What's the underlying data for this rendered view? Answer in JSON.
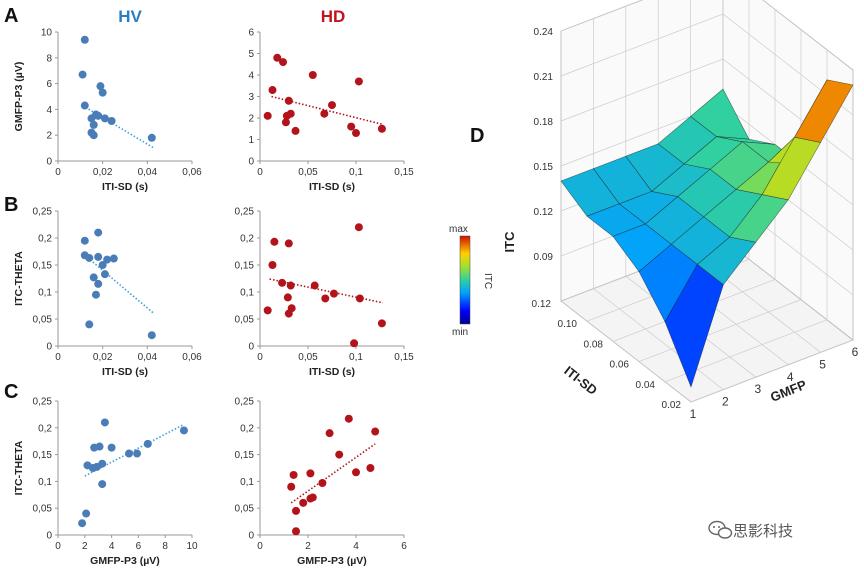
{
  "headers": {
    "left": "HV",
    "right": "HD",
    "left_color": "#2b7fc1",
    "right_color": "#c0141b"
  },
  "panel_letters": {
    "a": "A",
    "b": "B",
    "c": "C",
    "d": "D"
  },
  "colors": {
    "hv_point": "#4a7db8",
    "hv_trend": "#3aa0d8",
    "hd_point": "#b3141b",
    "hd_trend": "#b3141b"
  },
  "watermark": "思影科技",
  "chart_data": [
    {
      "id": "A-HV",
      "type": "scatter",
      "xlabel": "ITI-SD (s)",
      "ylabel": "GMFP-P3 (µV)",
      "xlim": [
        0,
        0.06
      ],
      "ylim": [
        0,
        10
      ],
      "xticks": [
        "0",
        "0,02",
        "0,04",
        "0,06"
      ],
      "yticks": [
        "0",
        "2",
        "4",
        "6",
        "8",
        "10"
      ],
      "x": [
        0.012,
        0.011,
        0.012,
        0.019,
        0.02,
        0.015,
        0.017,
        0.016,
        0.018,
        0.021,
        0.024,
        0.015,
        0.016,
        0.042
      ],
      "y": [
        9.4,
        6.7,
        4.3,
        5.8,
        5.3,
        3.3,
        3.6,
        2.8,
        3.5,
        3.3,
        3.1,
        2.2,
        2.0,
        1.8
      ],
      "trend": [
        [
          0.011,
          4.3
        ],
        [
          0.043,
          1.0
        ]
      ]
    },
    {
      "id": "A-HD",
      "type": "scatter",
      "xlabel": "ITI-SD (s)",
      "ylabel": "",
      "xlim": [
        0,
        0.15
      ],
      "ylim": [
        0,
        6
      ],
      "xticks": [
        "0",
        "0,05",
        "0,1",
        "0,15"
      ],
      "yticks": [
        "0",
        "1",
        "2",
        "3",
        "4",
        "5",
        "6"
      ],
      "x": [
        0.018,
        0.024,
        0.008,
        0.013,
        0.055,
        0.103,
        0.03,
        0.075,
        0.032,
        0.028,
        0.037,
        0.067,
        0.095,
        0.027,
        0.1,
        0.127
      ],
      "y": [
        4.8,
        4.6,
        2.1,
        3.3,
        4.0,
        3.7,
        2.8,
        2.6,
        2.2,
        2.1,
        1.4,
        2.2,
        1.6,
        1.8,
        1.3,
        1.5
      ],
      "trend": [
        [
          0.012,
          3.0
        ],
        [
          0.128,
          1.7
        ]
      ]
    },
    {
      "id": "B-HV",
      "type": "scatter",
      "xlabel": "ITI-SD (s)",
      "ylabel": "ITC-THETA",
      "xlim": [
        0,
        0.06
      ],
      "ylim": [
        0,
        0.25
      ],
      "xticks": [
        "0",
        "0,02",
        "0,04",
        "0,06"
      ],
      "yticks": [
        "0",
        "0,05",
        "0,1",
        "0,15",
        "0,2",
        "0,25"
      ],
      "x": [
        0.018,
        0.012,
        0.012,
        0.014,
        0.018,
        0.02,
        0.022,
        0.025,
        0.021,
        0.016,
        0.018,
        0.017,
        0.014,
        0.042
      ],
      "y": [
        0.21,
        0.195,
        0.168,
        0.163,
        0.165,
        0.15,
        0.16,
        0.162,
        0.133,
        0.127,
        0.115,
        0.095,
        0.04,
        0.02
      ],
      "trend": [
        [
          0.012,
          0.168
        ],
        [
          0.043,
          0.06
        ]
      ]
    },
    {
      "id": "B-HD",
      "type": "scatter",
      "xlabel": "ITI-SD (s)",
      "ylabel": "",
      "xlim": [
        0,
        0.15
      ],
      "ylim": [
        0,
        0.25
      ],
      "xticks": [
        "0",
        "0,05",
        "0,1",
        "0,15"
      ],
      "yticks": [
        "0",
        "0,05",
        "0,1",
        "0,15",
        "0,2",
        "0,25"
      ],
      "x": [
        0.015,
        0.03,
        0.103,
        0.013,
        0.023,
        0.032,
        0.057,
        0.077,
        0.029,
        0.068,
        0.033,
        0.104,
        0.008,
        0.03,
        0.127,
        0.098
      ],
      "y": [
        0.193,
        0.19,
        0.22,
        0.15,
        0.117,
        0.112,
        0.112,
        0.097,
        0.09,
        0.088,
        0.07,
        0.088,
        0.066,
        0.06,
        0.042,
        0.005
      ],
      "trend": [
        [
          0.01,
          0.124
        ],
        [
          0.128,
          0.08
        ]
      ]
    },
    {
      "id": "C-HV",
      "type": "scatter",
      "xlabel": "GMFP-P3 (µV)",
      "ylabel": "ITC-THETA",
      "xlim": [
        0,
        10
      ],
      "ylim": [
        0,
        0.25
      ],
      "xticks": [
        "0",
        "2",
        "4",
        "6",
        "8",
        "10"
      ],
      "yticks": [
        "0",
        "0,05",
        "0,1",
        "0,15",
        "0,2",
        "0,25"
      ],
      "x": [
        3.5,
        9.4,
        2.7,
        3.1,
        4.0,
        6.7,
        5.3,
        5.9,
        2.2,
        2.6,
        3.3,
        2.9,
        3.3,
        2.1,
        1.8
      ],
      "y": [
        0.21,
        0.195,
        0.163,
        0.165,
        0.163,
        0.17,
        0.152,
        0.152,
        0.13,
        0.125,
        0.133,
        0.127,
        0.095,
        0.04,
        0.022
      ],
      "trend": [
        [
          2.0,
          0.11
        ],
        [
          9.3,
          0.205
        ]
      ]
    },
    {
      "id": "C-HD",
      "type": "scatter",
      "xlabel": "GMFP-P3 (µV)",
      "ylabel": "",
      "xlim": [
        0,
        6
      ],
      "ylim": [
        0,
        0.25
      ],
      "xticks": [
        "0",
        "2",
        "4",
        "6"
      ],
      "yticks": [
        "0",
        "0,05",
        "0,1",
        "0,15",
        "0,2",
        "0,25"
      ],
      "x": [
        3.7,
        4.8,
        2.9,
        3.3,
        2.1,
        1.4,
        2.6,
        1.3,
        4.0,
        4.6,
        2.2,
        1.8,
        2.1,
        1.5,
        1.5
      ],
      "y": [
        0.217,
        0.193,
        0.19,
        0.15,
        0.115,
        0.112,
        0.097,
        0.09,
        0.117,
        0.125,
        0.07,
        0.06,
        0.068,
        0.045,
        0.007
      ],
      "trend": [
        [
          1.3,
          0.06
        ],
        [
          4.8,
          0.17
        ]
      ]
    },
    {
      "id": "D",
      "type": "surface3d",
      "xlabel": "GMFP",
      "ylabel": "ITI-SD",
      "zlabel": "ITC",
      "xlim": [
        1,
        6
      ],
      "ylim": [
        0.01,
        0.12
      ],
      "zlim": [
        0.06,
        0.24
      ],
      "xticks": [
        "1",
        "2",
        "3",
        "4",
        "5",
        "6"
      ],
      "yticks": [
        "0.02",
        "0.04",
        "0.06",
        "0.08",
        "0.10",
        "0.12"
      ],
      "zticks": [
        "0.09",
        "0.12",
        "0.15",
        "0.18",
        "0.21",
        "0.24"
      ],
      "gmfp": [
        1,
        2,
        3,
        4,
        5,
        6
      ],
      "iti_sd": [
        0.02,
        0.04,
        0.06,
        0.08,
        0.1,
        0.12
      ],
      "itc": [
        [
          0.07,
          0.13,
          0.15,
          0.17,
          0.2,
          0.23
        ],
        [
          0.1,
          0.13,
          0.14,
          0.16,
          0.19,
          0.22
        ],
        [
          0.12,
          0.13,
          0.14,
          0.15,
          0.16,
          0.15
        ],
        [
          0.13,
          0.13,
          0.14,
          0.15,
          0.16,
          0.15
        ],
        [
          0.13,
          0.13,
          0.13,
          0.14,
          0.15,
          0.14
        ],
        [
          0.14,
          0.14,
          0.14,
          0.14,
          0.15,
          0.16
        ]
      ],
      "colorbar": {
        "max": "max",
        "min": "min",
        "label": "ITC"
      }
    }
  ]
}
